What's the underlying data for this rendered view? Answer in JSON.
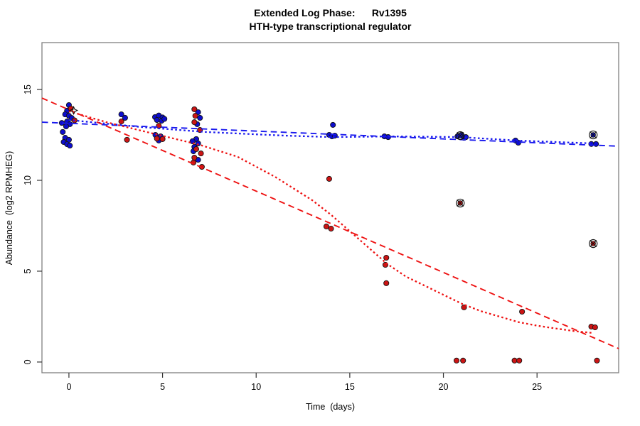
{
  "title_line1": "Extended Log Phase:      Rv1395",
  "title_line2": "HTH-type transcriptional regulator",
  "chart_data": {
    "type": "scatter",
    "title": "Extended Log Phase:      Rv1395",
    "subtitle": "HTH-type transcriptional regulator",
    "xlabel": "Time  (days)",
    "ylabel": "Abundance  (log2 RPMHEG)",
    "xlim": [
      -1.44,
      29.36
    ],
    "ylim": [
      -0.59,
      17.58
    ],
    "xticks": [
      0,
      5,
      10,
      15,
      20,
      25
    ],
    "yticks": [
      0,
      5,
      10,
      15
    ],
    "grid": false,
    "legend": "none",
    "colors": {
      "blue_point": "#0d0dcd",
      "red_point": "#cc1414",
      "blue_line": "#1a1aee",
      "red_line": "#ee1212",
      "marker_black": "#111111",
      "box": "#808080",
      "tick": "#333333"
    },
    "series": [
      {
        "name": "blue-replicates",
        "color": "blue_point",
        "marker": "dot",
        "points": [
          [
            0,
            14.14
          ],
          [
            -0.1,
            13.83
          ],
          [
            -0.2,
            13.63
          ],
          [
            0,
            13.55
          ],
          [
            0.15,
            13.43
          ],
          [
            -0.1,
            13.24
          ],
          [
            -0.38,
            13.16
          ],
          [
            0.05,
            13.09
          ],
          [
            -0.15,
            12.97
          ],
          [
            -0.33,
            12.66
          ],
          [
            -0.2,
            12.34
          ],
          [
            0,
            12.23
          ],
          [
            -0.28,
            12.11
          ],
          [
            -0.1,
            11.99
          ],
          [
            0.05,
            11.91
          ],
          [
            2.8,
            13.63
          ],
          [
            3.0,
            13.44
          ],
          [
            4.6,
            13.48
          ],
          [
            4.8,
            13.57
          ],
          [
            5.0,
            13.46
          ],
          [
            4.7,
            13.32
          ],
          [
            4.95,
            13.28
          ],
          [
            5.1,
            13.38
          ],
          [
            4.62,
            12.5
          ],
          [
            4.9,
            12.42
          ],
          [
            4.8,
            12.19
          ],
          [
            6.9,
            13.75
          ],
          [
            7.0,
            13.44
          ],
          [
            6.85,
            13.09
          ],
          [
            6.8,
            12.27
          ],
          [
            6.6,
            12.15
          ],
          [
            6.9,
            12.03
          ],
          [
            6.7,
            11.84
          ],
          [
            6.65,
            11.6
          ],
          [
            6.9,
            11.13
          ],
          [
            14.1,
            13.05
          ],
          [
            13.9,
            12.5
          ],
          [
            14.05,
            12.42
          ],
          [
            14.2,
            12.46
          ],
          [
            16.85,
            12.42
          ],
          [
            17.05,
            12.38
          ],
          [
            20.75,
            12.42
          ],
          [
            20.95,
            12.5
          ],
          [
            21.1,
            12.34
          ],
          [
            21.2,
            12.38
          ],
          [
            23.85,
            12.19
          ],
          [
            24.0,
            12.07
          ],
          [
            27.9,
            12.0
          ],
          [
            28.15,
            12.0
          ]
        ]
      },
      {
        "name": "red-replicates",
        "color": "red_point",
        "marker": "dot",
        "points": [
          [
            0.1,
            13.95
          ],
          [
            0.3,
            13.3
          ],
          [
            2.8,
            13.24
          ],
          [
            3.1,
            12.23
          ],
          [
            4.8,
            13.0
          ],
          [
            4.7,
            12.3
          ],
          [
            5.0,
            12.27
          ],
          [
            6.7,
            13.91
          ],
          [
            6.75,
            13.55
          ],
          [
            6.7,
            13.2
          ],
          [
            7.0,
            12.77
          ],
          [
            6.8,
            11.72
          ],
          [
            7.05,
            11.48
          ],
          [
            6.7,
            11.25
          ],
          [
            6.65,
            10.98
          ],
          [
            7.1,
            10.74
          ],
          [
            13.9,
            10.08
          ],
          [
            13.75,
            7.46
          ],
          [
            14.0,
            7.34
          ],
          [
            16.95,
            5.74
          ],
          [
            16.9,
            5.35
          ],
          [
            16.95,
            4.34
          ],
          [
            21.1,
            3.01
          ],
          [
            20.7,
            0.08
          ],
          [
            21.05,
            0.08
          ],
          [
            24.2,
            2.77
          ],
          [
            23.8,
            0.08
          ],
          [
            24.05,
            0.08
          ],
          [
            27.9,
            1.95
          ],
          [
            28.1,
            1.91
          ],
          [
            28.2,
            0.08
          ]
        ]
      },
      {
        "name": "flagged-blue-points",
        "color": "blue_point",
        "marker": "circle-x",
        "points": [
          [
            20.9,
            12.46
          ],
          [
            28.0,
            12.5
          ]
        ]
      },
      {
        "name": "flagged-red-points",
        "color": "red_point",
        "marker": "circle-x",
        "points": [
          [
            20.9,
            8.75
          ],
          [
            28.0,
            6.52
          ]
        ]
      },
      {
        "name": "star-outlier-marker",
        "color": "marker_black",
        "marker": "star",
        "points": [
          [
            0.25,
            13.85
          ]
        ]
      }
    ],
    "lines": [
      {
        "name": "blue-linear-fit",
        "style": "dashed",
        "color": "blue_line",
        "points": [
          [
            -1.44,
            13.2
          ],
          [
            29.36,
            11.88
          ]
        ]
      },
      {
        "name": "blue-smooth-fit",
        "style": "dotted",
        "color": "blue_line",
        "points": [
          [
            0,
            13.32
          ],
          [
            3.9,
            12.93
          ],
          [
            7.3,
            12.66
          ],
          [
            11.5,
            12.46
          ],
          [
            14.05,
            12.38
          ],
          [
            17.2,
            12.42
          ],
          [
            20.9,
            12.38
          ],
          [
            23.9,
            12.19
          ],
          [
            28,
            12.03
          ]
        ]
      },
      {
        "name": "red-linear-fit",
        "style": "dashed",
        "color": "red_line",
        "points": [
          [
            -1.44,
            14.53
          ],
          [
            29.36,
            0.74
          ]
        ]
      },
      {
        "name": "red-smooth-fit",
        "style": "dotted",
        "color": "red_line",
        "points": [
          [
            0,
            13.8
          ],
          [
            2,
            13.2
          ],
          [
            4,
            12.7
          ],
          [
            6,
            12.2
          ],
          [
            7,
            11.95
          ],
          [
            9,
            11.3
          ],
          [
            11,
            10.2
          ],
          [
            13,
            8.9
          ],
          [
            14,
            8.1
          ],
          [
            15,
            7.2
          ],
          [
            16,
            6.3
          ],
          [
            17,
            5.4
          ],
          [
            18,
            4.7
          ],
          [
            19,
            4.2
          ],
          [
            20,
            3.7
          ],
          [
            21,
            3.2
          ],
          [
            22,
            2.8
          ],
          [
            23,
            2.5
          ],
          [
            24,
            2.2
          ],
          [
            25,
            2.0
          ],
          [
            26,
            1.85
          ],
          [
            27,
            1.7
          ],
          [
            28,
            1.6
          ]
        ]
      }
    ]
  }
}
